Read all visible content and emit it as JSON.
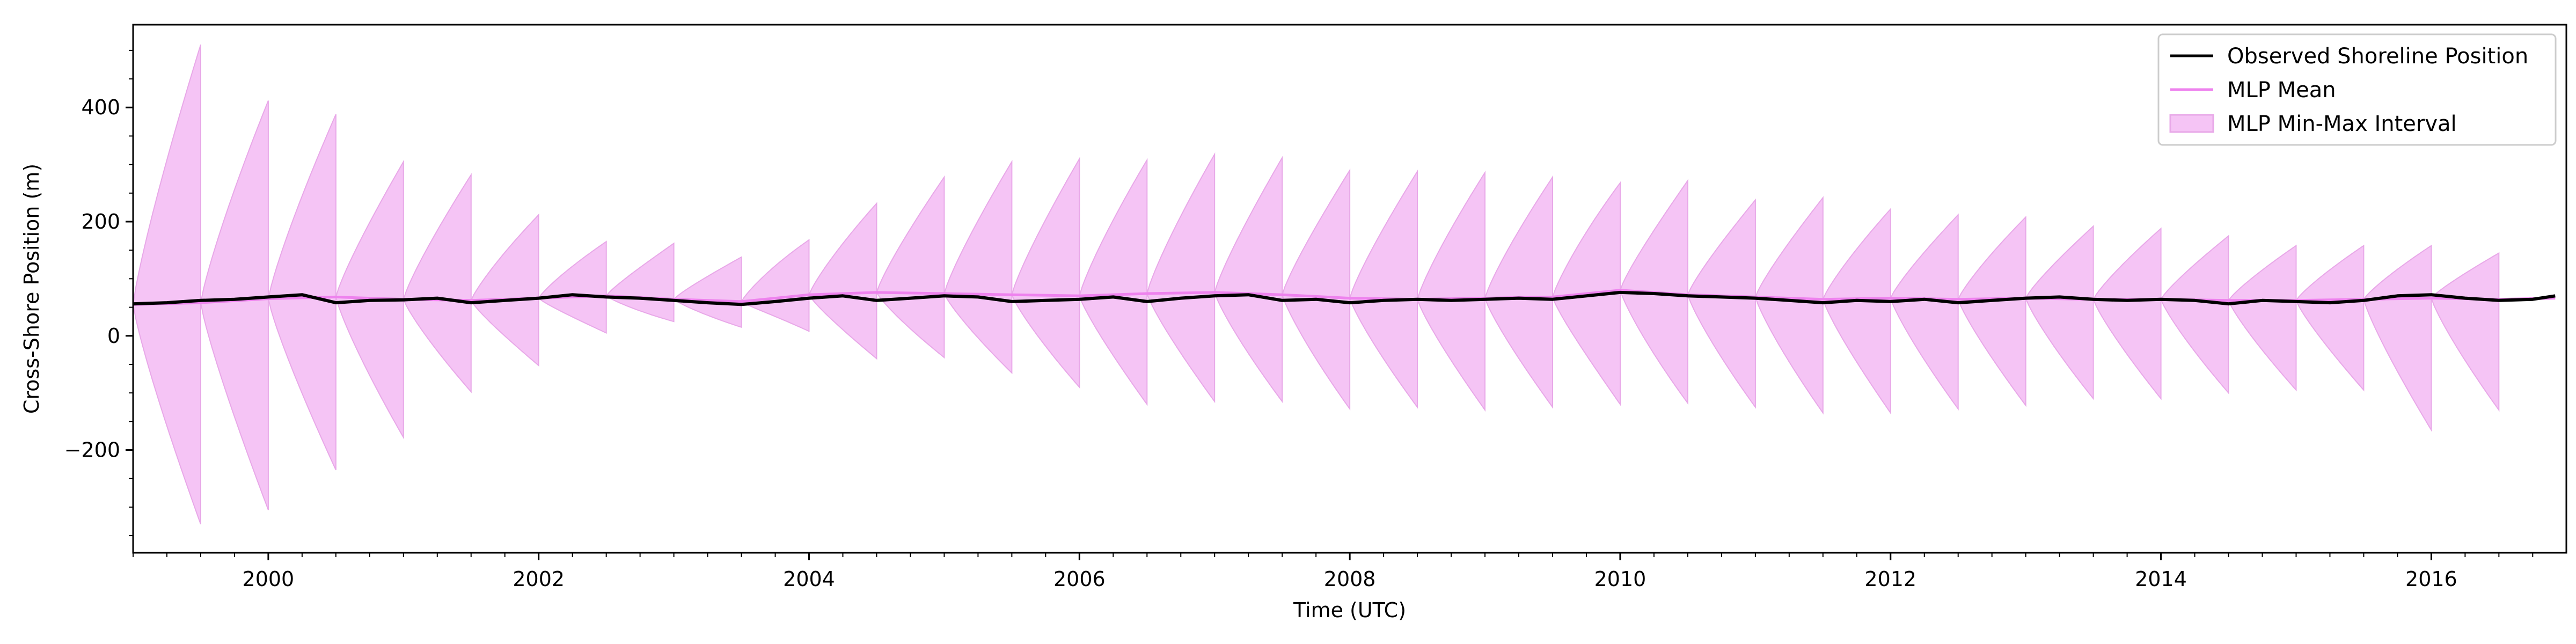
{
  "chart_data": {
    "type": "line",
    "xlabel": "Time (UTC)",
    "ylabel": "Cross-Shore Position (m)",
    "xlim": [
      "1999-01-01",
      "2016-12-31"
    ],
    "ylim": [
      -380,
      545
    ],
    "x_ticks": [
      "2000",
      "2002",
      "2004",
      "2006",
      "2008",
      "2010",
      "2012",
      "2014",
      "2016"
    ],
    "y_ticks": [
      -200,
      0,
      200,
      400
    ],
    "grid": false,
    "legend_position": "top-right",
    "legend": [
      "Observed Shoreline Position",
      "MLP Mean",
      "MLP Min-Max Interval"
    ],
    "colors": {
      "observed": "#000000",
      "mean": "#ee82ee",
      "interval_fill": "#f5c4f5",
      "interval_edge": "#e8a8e8"
    },
    "series": [
      {
        "name": "Observed Shoreline Position",
        "points": [
          [
            "1999-01",
            56
          ],
          [
            "1999-04",
            58
          ],
          [
            "1999-07",
            62
          ],
          [
            "1999-10",
            64
          ],
          [
            "2000-01",
            68
          ],
          [
            "2000-04",
            72
          ],
          [
            "2000-07",
            58
          ],
          [
            "2000-10",
            62
          ],
          [
            "2001-01",
            63
          ],
          [
            "2001-04",
            66
          ],
          [
            "2001-07",
            58
          ],
          [
            "2001-10",
            62
          ],
          [
            "2002-01",
            66
          ],
          [
            "2002-04",
            72
          ],
          [
            "2002-07",
            68
          ],
          [
            "2002-10",
            66
          ],
          [
            "2003-01",
            62
          ],
          [
            "2003-04",
            58
          ],
          [
            "2003-07",
            55
          ],
          [
            "2003-10",
            60
          ],
          [
            "2004-01",
            66
          ],
          [
            "2004-04",
            70
          ],
          [
            "2004-07",
            62
          ],
          [
            "2004-10",
            66
          ],
          [
            "2005-01",
            70
          ],
          [
            "2005-04",
            68
          ],
          [
            "2005-07",
            60
          ],
          [
            "2005-10",
            62
          ],
          [
            "2006-01",
            64
          ],
          [
            "2006-04",
            68
          ],
          [
            "2006-07",
            60
          ],
          [
            "2006-10",
            66
          ],
          [
            "2007-01",
            70
          ],
          [
            "2007-04",
            72
          ],
          [
            "2007-07",
            62
          ],
          [
            "2007-10",
            64
          ],
          [
            "2008-01",
            58
          ],
          [
            "2008-04",
            62
          ],
          [
            "2008-07",
            64
          ],
          [
            "2008-10",
            62
          ],
          [
            "2009-01",
            64
          ],
          [
            "2009-04",
            66
          ],
          [
            "2009-07",
            64
          ],
          [
            "2009-10",
            70
          ],
          [
            "2010-01",
            76
          ],
          [
            "2010-04",
            74
          ],
          [
            "2010-07",
            70
          ],
          [
            "2010-10",
            68
          ],
          [
            "2011-01",
            66
          ],
          [
            "2011-04",
            62
          ],
          [
            "2011-07",
            58
          ],
          [
            "2011-10",
            62
          ],
          [
            "2012-01",
            60
          ],
          [
            "2012-04",
            64
          ],
          [
            "2012-07",
            58
          ],
          [
            "2012-10",
            62
          ],
          [
            "2013-01",
            66
          ],
          [
            "2013-04",
            68
          ],
          [
            "2013-07",
            64
          ],
          [
            "2013-10",
            62
          ],
          [
            "2014-01",
            64
          ],
          [
            "2014-04",
            62
          ],
          [
            "2014-07",
            56
          ],
          [
            "2014-10",
            62
          ],
          [
            "2015-01",
            60
          ],
          [
            "2015-04",
            58
          ],
          [
            "2015-07",
            62
          ],
          [
            "2015-10",
            70
          ],
          [
            "2016-01",
            72
          ],
          [
            "2016-04",
            66
          ],
          [
            "2016-07",
            62
          ],
          [
            "2016-10",
            64
          ],
          [
            "2016-12",
            70
          ]
        ]
      },
      {
        "name": "MLP Mean",
        "points": [
          [
            "1999-01",
            55
          ],
          [
            "1999-07",
            58
          ],
          [
            "2000-01",
            65
          ],
          [
            "2000-07",
            68
          ],
          [
            "2001-01",
            64
          ],
          [
            "2001-07",
            62
          ],
          [
            "2002-01",
            66
          ],
          [
            "2002-07",
            70
          ],
          [
            "2003-01",
            64
          ],
          [
            "2003-07",
            60
          ],
          [
            "2004-01",
            72
          ],
          [
            "2004-07",
            76
          ],
          [
            "2005-01",
            74
          ],
          [
            "2005-07",
            72
          ],
          [
            "2006-01",
            70
          ],
          [
            "2006-07",
            74
          ],
          [
            "2007-01",
            76
          ],
          [
            "2007-07",
            72
          ],
          [
            "2008-01",
            66
          ],
          [
            "2008-07",
            64
          ],
          [
            "2009-01",
            66
          ],
          [
            "2009-07",
            68
          ],
          [
            "2010-01",
            80
          ],
          [
            "2010-07",
            72
          ],
          [
            "2011-01",
            68
          ],
          [
            "2011-07",
            64
          ],
          [
            "2012-01",
            66
          ],
          [
            "2012-07",
            64
          ],
          [
            "2013-01",
            66
          ],
          [
            "2013-07",
            64
          ],
          [
            "2014-01",
            64
          ],
          [
            "2014-07",
            62
          ],
          [
            "2015-01",
            62
          ],
          [
            "2015-07",
            64
          ],
          [
            "2016-01",
            66
          ],
          [
            "2016-07",
            64
          ],
          [
            "2016-12",
            66
          ]
        ]
      },
      {
        "name": "MLP Min-Max Interval",
        "cycle_months": 6,
        "start": "1999-01",
        "end": "2016-12",
        "peaks_upper": [
          510,
          412,
          388,
          305,
          282,
          212,
          165,
          162,
          138,
          168,
          232,
          278,
          305,
          310,
          308,
          318,
          312,
          290,
          288,
          286,
          278,
          268,
          272,
          238,
          242,
          222,
          212,
          208,
          192,
          188,
          175,
          158,
          158,
          158,
          145
        ],
        "peaks_lower": [
          -330,
          -305,
          -235,
          -178,
          -98,
          -52,
          5,
          25,
          15,
          8,
          -40,
          -38,
          -65,
          -90,
          -120,
          -115,
          -115,
          -128,
          -125,
          -130,
          -125,
          -120,
          -118,
          -125,
          -135,
          -135,
          -128,
          -122,
          -110,
          -110,
          -100,
          -95,
          -95,
          -165,
          -130
        ]
      }
    ]
  }
}
